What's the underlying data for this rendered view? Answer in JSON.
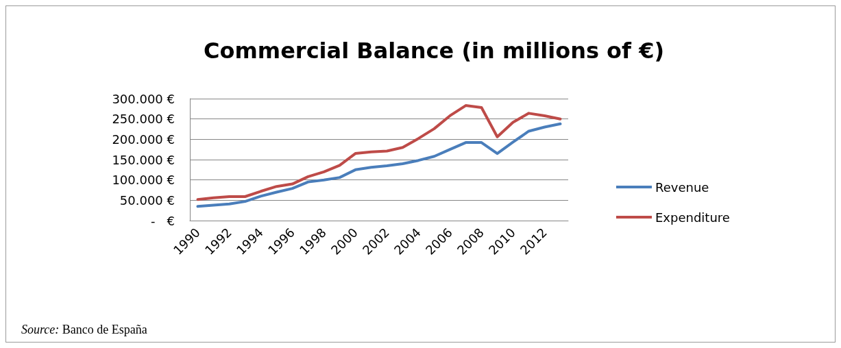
{
  "chart_data": {
    "type": "line",
    "title": "Commercial Balance (in millions of €)",
    "categories": [
      "1990",
      null,
      "1992",
      null,
      "1994",
      null,
      "1996",
      null,
      "1998",
      null,
      "2000",
      null,
      "2002",
      null,
      "2004",
      null,
      "2006",
      null,
      "2008",
      null,
      "2010",
      null,
      "2012",
      null
    ],
    "series": [
      {
        "name": "Revenue",
        "color": "#4a7ebb",
        "values": [
          35000,
          38000,
          41000,
          47000,
          60000,
          70000,
          79000,
          95000,
          100000,
          106000,
          125000,
          131000,
          135000,
          140000,
          148000,
          158000,
          175000,
          192000,
          192000,
          165000,
          193000,
          220000,
          230000,
          238000
        ]
      },
      {
        "name": "Expenditure",
        "color": "#be4b48",
        "values": [
          52000,
          56000,
          59000,
          59000,
          72000,
          84000,
          90000,
          108000,
          120000,
          136000,
          165000,
          169000,
          171000,
          180000,
          202000,
          226000,
          258000,
          283000,
          278000,
          206000,
          242000,
          264000,
          258000,
          250000
        ]
      }
    ],
    "ylim": [
      0,
      300000
    ],
    "yticks": [
      {
        "value": 0,
        "label": "-   €"
      },
      {
        "value": 50000,
        "label": "50.000 €"
      },
      {
        "value": 100000,
        "label": "100.000 €"
      },
      {
        "value": 150000,
        "label": "150.000 €"
      },
      {
        "value": 200000,
        "label": "200.000 €"
      },
      {
        "value": 250000,
        "label": "250.000 €"
      },
      {
        "value": 300000,
        "label": "300.000 €"
      }
    ],
    "grid": "y",
    "legend": "right",
    "marker": "none",
    "line_style": "solid",
    "annotations": [
      "Source: Banco de España"
    ]
  }
}
